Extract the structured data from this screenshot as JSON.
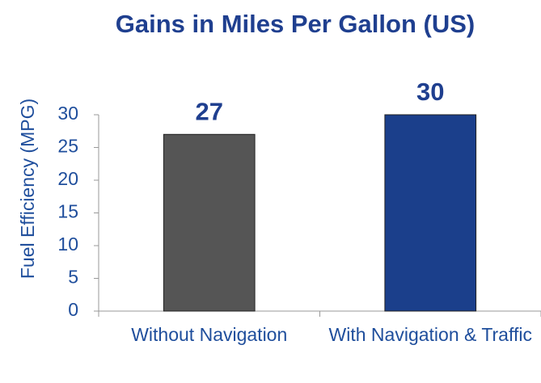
{
  "chart_data": {
    "type": "bar",
    "title": "Gains in Miles Per Gallon (US)",
    "y_label": "Fuel Efficiency (MPG)",
    "categories": [
      "Without Navigation",
      "With Navigation & Traffic"
    ],
    "values": [
      27,
      30
    ],
    "colors": [
      "#555555",
      "#1b3f8b"
    ],
    "ylim": [
      0,
      30
    ],
    "yticks": [
      0,
      5,
      10,
      15,
      20,
      25,
      30
    ],
    "grid": false
  }
}
